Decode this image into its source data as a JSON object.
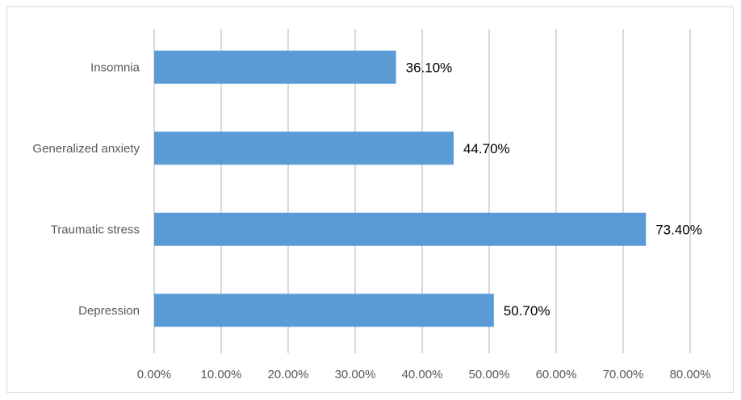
{
  "chart_data": {
    "type": "bar",
    "orientation": "horizontal",
    "categories": [
      "Insomnia",
      "Generalized anxiety",
      "Traumatic stress",
      "Depression"
    ],
    "values": [
      36.1,
      44.7,
      73.4,
      50.7
    ],
    "data_labels": [
      "36.10%",
      "44.70%",
      "73.40%",
      "50.70%"
    ],
    "x_ticks": [
      "0.00%",
      "10.00%",
      "20.00%",
      "30.00%",
      "40.00%",
      "50.00%",
      "60.00%",
      "70.00%",
      "80.00%"
    ],
    "xlim": [
      0,
      80
    ],
    "grid": "vertical",
    "legend": "none",
    "title": "",
    "xlabel": "",
    "ylabel": "",
    "colors": {
      "bar": "#5b9bd5",
      "grid": "#d9d9d9",
      "text": "#595959",
      "label": "#000000"
    }
  }
}
